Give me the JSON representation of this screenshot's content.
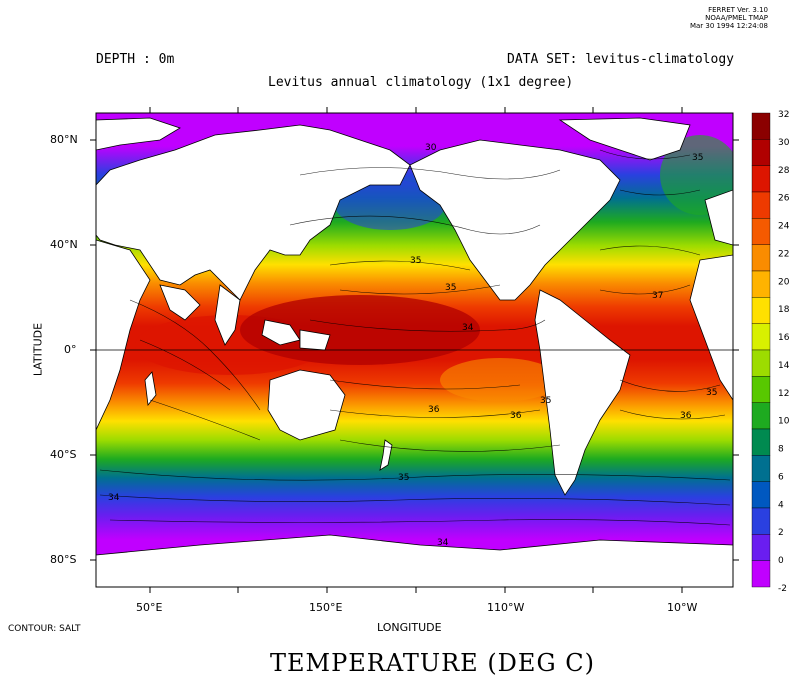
{
  "version_stamp": {
    "line1": "FERRET Ver. 3.10",
    "line2": "NOAA/PMEL TMAP",
    "line3": "Mar 30 1994 12:24:08"
  },
  "header": {
    "depth": "DEPTH : 0m",
    "dataset": "DATA SET: levitus-climatology",
    "subtitle": "Levitus annual climatology (1x1 degree)"
  },
  "axes": {
    "ylabel": "LATITUDE",
    "xlabel": "LONGITUDE",
    "lat_ticks": [
      "80°N",
      "40°N",
      "0°",
      "40°S",
      "80°S"
    ],
    "lon_ticks": [
      "50°E",
      "150°E",
      "110°W",
      "10°W"
    ]
  },
  "footer": {
    "contour_note": "CONTOUR: SALT",
    "main_title": "TEMPERATURE (DEG C)"
  },
  "colorbar": {
    "labels": [
      "32",
      "30",
      "28",
      "26",
      "24",
      "22",
      "20",
      "18",
      "16",
      "14",
      "12",
      "10",
      "8",
      "6",
      "4",
      "2",
      "0",
      "-2"
    ],
    "colors": [
      "#8b0000",
      "#b00000",
      "#dd1500",
      "#ee3a00",
      "#f55a00",
      "#fa8c00",
      "#ffb300",
      "#ffe000",
      "#d8f000",
      "#9ddc00",
      "#58c800",
      "#1eaa20",
      "#008a50",
      "#007090",
      "#0058c0",
      "#2a40e0",
      "#6a1ef0",
      "#c000ff"
    ]
  },
  "contour_labels": [
    "30",
    "35",
    "35",
    "35",
    "37",
    "34",
    "36",
    "35",
    "36",
    "35",
    "34",
    "34",
    "35",
    "36"
  ],
  "chart_data": {
    "type": "heatmap",
    "title": "TEMPERATURE (DEG C)",
    "subtitle": "Levitus annual climatology (1x1 degree)",
    "xlabel": "LONGITUDE",
    "ylabel": "LATITUDE",
    "color_scale": {
      "min": -2,
      "max": 32,
      "step": 2
    },
    "overlay": "CONTOUR: SALT",
    "zonal_mean_temperature": [
      {
        "lat": 80,
        "value": -1
      },
      {
        "lat": 60,
        "value": 6
      },
      {
        "lat": 40,
        "value": 16
      },
      {
        "lat": 20,
        "value": 25
      },
      {
        "lat": 0,
        "value": 28
      },
      {
        "lat": -20,
        "value": 24
      },
      {
        "lat": -40,
        "value": 14
      },
      {
        "lat": -60,
        "value": 1
      },
      {
        "lat": -75,
        "value": -2
      }
    ]
  }
}
